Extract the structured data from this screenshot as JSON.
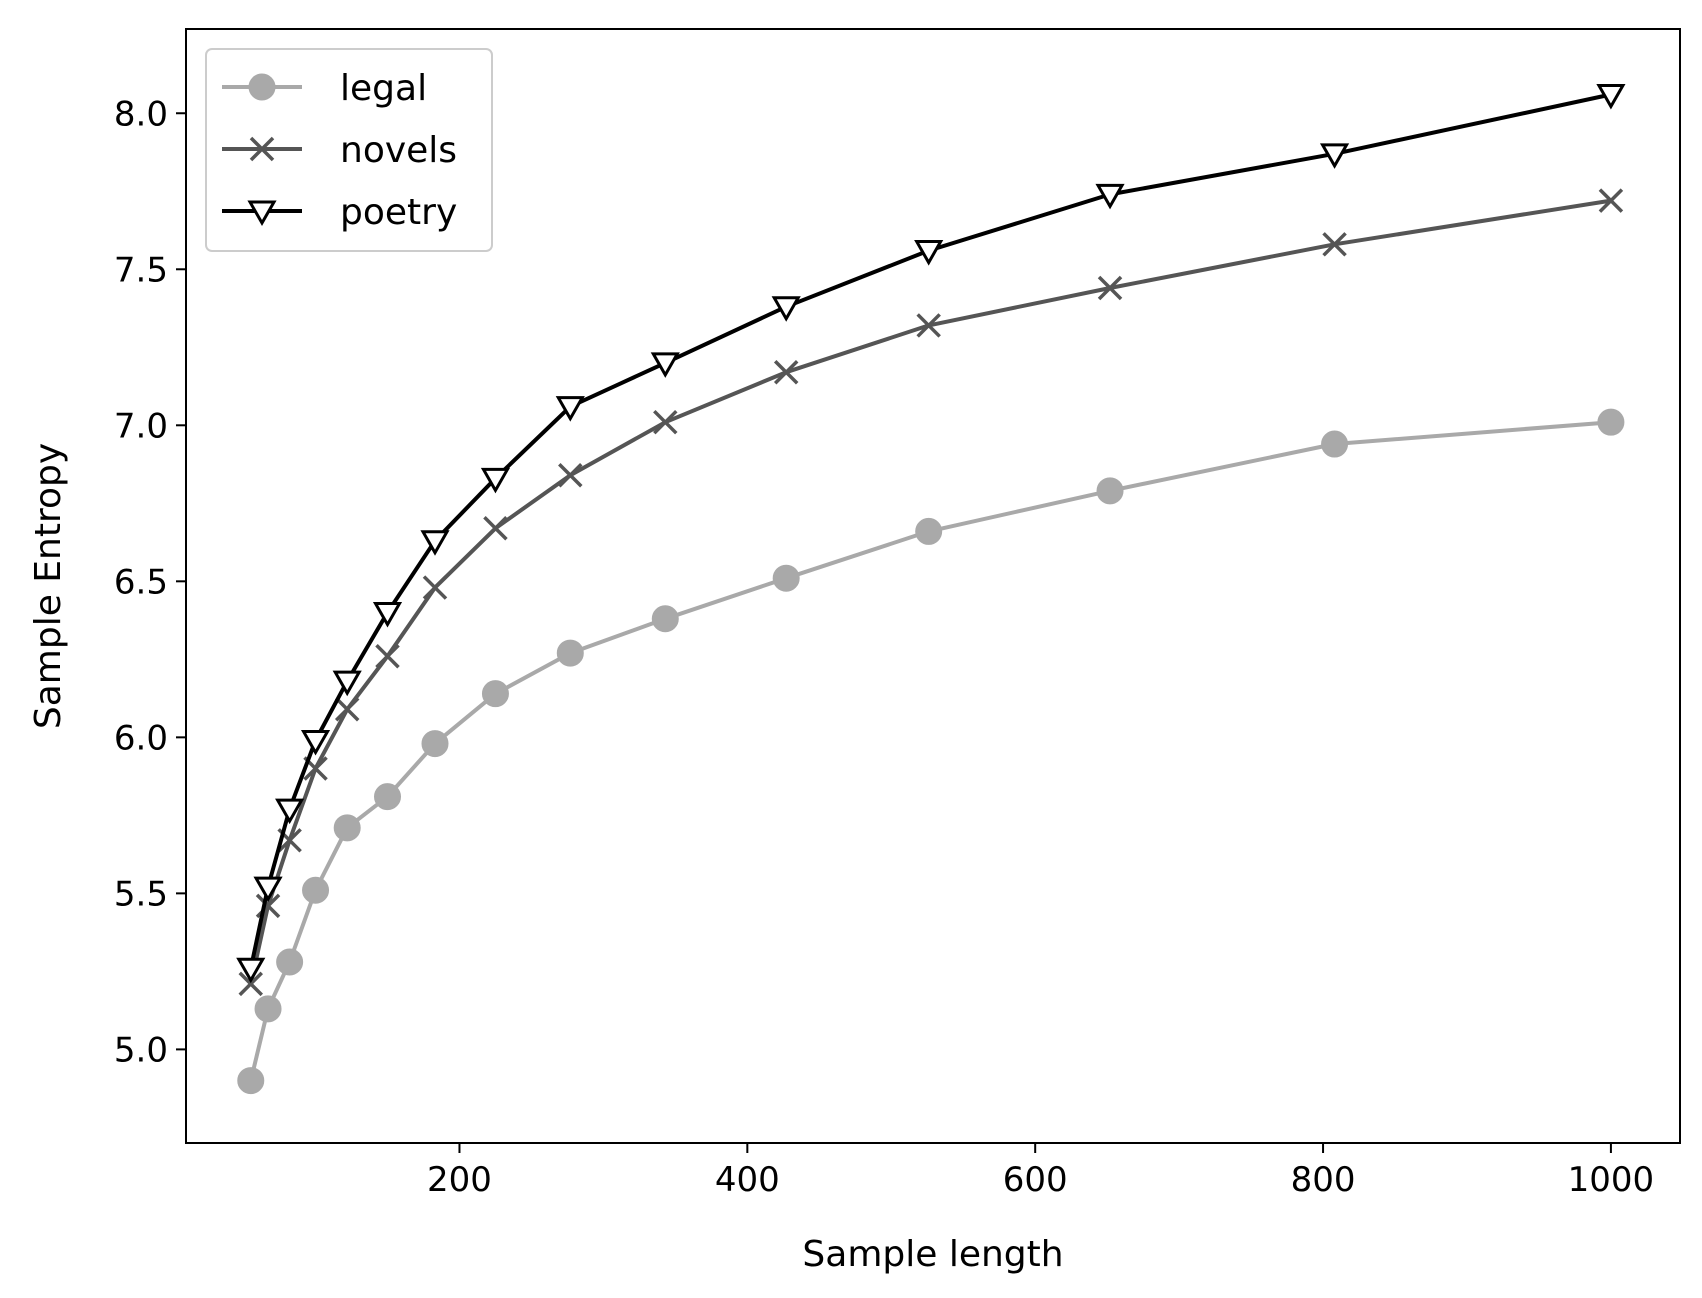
{
  "chart_data": {
    "type": "line",
    "title": "",
    "xlabel": "Sample length",
    "ylabel": "Sample Entropy",
    "xlim": [
      10,
      1048
    ],
    "ylim": [
      4.7,
      8.27
    ],
    "xticks": [
      200,
      400,
      600,
      800,
      1000
    ],
    "yticks": [
      5.0,
      5.5,
      6.0,
      6.5,
      7.0,
      7.5,
      8.0
    ],
    "grid": false,
    "legend_position": "upper-left",
    "x": [
      55,
      67,
      82,
      100,
      122,
      150,
      183,
      225,
      277,
      343,
      427,
      526,
      652,
      808,
      1000
    ],
    "series": [
      {
        "name": "legal",
        "marker": "circle",
        "color": "#a9a9a9",
        "values": [
          4.9,
          5.13,
          5.28,
          5.51,
          5.71,
          5.81,
          5.98,
          6.14,
          6.27,
          6.38,
          6.51,
          6.66,
          6.79,
          6.94,
          7.01
        ]
      },
      {
        "name": "novels",
        "marker": "x",
        "color": "#555555",
        "values": [
          5.21,
          5.46,
          5.67,
          5.9,
          6.09,
          6.26,
          6.48,
          6.67,
          6.84,
          7.01,
          7.17,
          7.32,
          7.44,
          7.58,
          7.72
        ]
      },
      {
        "name": "poetry",
        "marker": "triangle-down",
        "color": "#000000",
        "values": [
          5.26,
          5.52,
          5.77,
          5.99,
          6.18,
          6.4,
          6.63,
          6.83,
          7.06,
          7.2,
          7.38,
          7.56,
          7.74,
          7.87,
          8.06
        ]
      }
    ]
  }
}
